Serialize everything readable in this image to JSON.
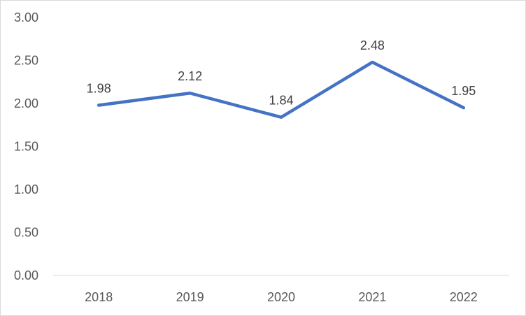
{
  "chart_data": {
    "type": "line",
    "title": "",
    "xlabel": "",
    "ylabel": "",
    "categories": [
      "2018",
      "2019",
      "2020",
      "2021",
      "2022"
    ],
    "series": [
      {
        "values": [
          1.98,
          2.12,
          1.84,
          2.48,
          1.95
        ],
        "data_labels": [
          "1.98",
          "2.12",
          "1.84",
          "2.48",
          "1.95"
        ],
        "color": "#4472c4"
      }
    ],
    "ylim": [
      0,
      3
    ],
    "yticks": [
      "0.00",
      "0.50",
      "1.00",
      "1.50",
      "2.00",
      "2.50",
      "3.00"
    ],
    "grid": false,
    "legend": "none",
    "axis_color": "#d9d9d9"
  }
}
